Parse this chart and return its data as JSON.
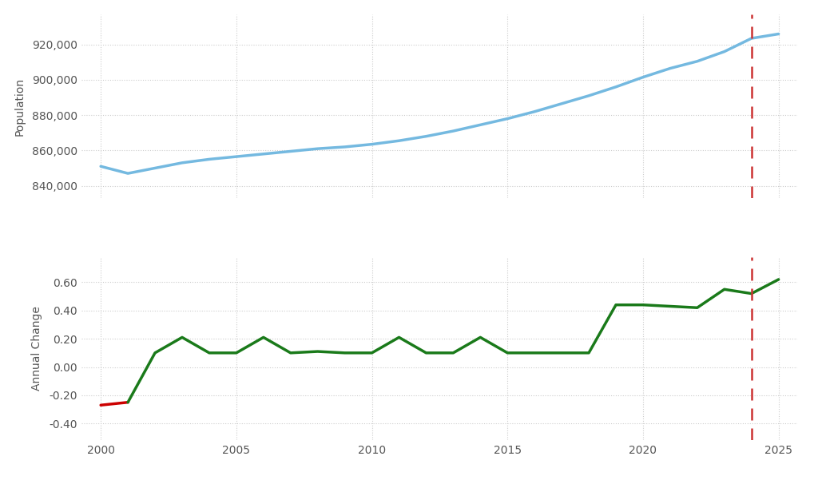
{
  "years": [
    2000,
    2001,
    2002,
    2003,
    2004,
    2005,
    2006,
    2007,
    2008,
    2009,
    2010,
    2011,
    2012,
    2013,
    2014,
    2015,
    2016,
    2017,
    2018,
    2019,
    2020,
    2021,
    2022,
    2023,
    2024,
    2025
  ],
  "population": [
    851000,
    847000,
    850000,
    853000,
    855000,
    856500,
    858000,
    859500,
    861000,
    862000,
    863500,
    865500,
    868000,
    871000,
    874500,
    878000,
    882000,
    886500,
    891000,
    896000,
    901500,
    906500,
    910500,
    916000,
    923500,
    926000
  ],
  "annual_change": [
    -0.27,
    -0.25,
    0.1,
    0.21,
    0.1,
    0.1,
    0.21,
    0.1,
    0.11,
    0.1,
    0.1,
    0.21,
    0.1,
    0.1,
    0.21,
    0.1,
    0.1,
    0.1,
    0.1,
    0.44,
    0.44,
    0.43,
    0.42,
    0.55,
    0.52,
    0.62
  ],
  "population_color": "#74b9e0",
  "annual_change_color_positive": "#1a7a1a",
  "annual_change_color_negative": "#cc0000",
  "dashed_line_x": 2024,
  "dashed_line_color": "#cc3333",
  "background_color": "#ffffff",
  "grid_color": "#cccccc",
  "ylabel_population": "Population",
  "ylabel_annual_change": "Annual Change",
  "pop_ylim": [
    833000,
    937000
  ],
  "change_ylim": [
    -0.52,
    0.78
  ],
  "pop_yticks": [
    840000,
    860000,
    880000,
    900000,
    920000
  ],
  "change_yticks": [
    -0.4,
    -0.2,
    0.0,
    0.2,
    0.4,
    0.6
  ],
  "xticks": [
    2000,
    2005,
    2010,
    2015,
    2020,
    2025
  ],
  "font_color": "#555555",
  "tick_fontsize": 10,
  "ylabel_fontsize": 10
}
